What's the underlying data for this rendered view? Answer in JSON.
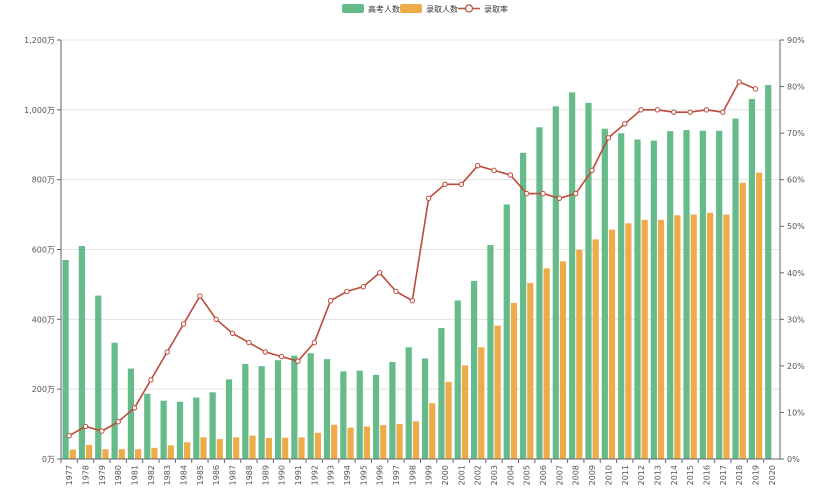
{
  "chart_data": {
    "type": "bar+line",
    "title": "",
    "xlabel": "",
    "ylabel": "",
    "grid": true,
    "legend_placement": "top-center",
    "legend": [
      "高考人数",
      "录取人数",
      "录取率"
    ],
    "colors": {
      "applicants": "#66bb8a",
      "admitted": "#eeab49",
      "rate": "#bd4a3a",
      "grid": "#e3e3e3",
      "axis": "#666666"
    },
    "categories": [
      "1977",
      "1978",
      "1979",
      "1980",
      "1981",
      "1982",
      "1983",
      "1984",
      "1985",
      "1986",
      "1987",
      "1988",
      "1989",
      "1990",
      "1991",
      "1992",
      "1993",
      "1994",
      "1995",
      "1996",
      "1997",
      "1998",
      "1999",
      "2000",
      "2001",
      "2002",
      "2003",
      "2004",
      "2005",
      "2006",
      "2007",
      "2008",
      "2009",
      "2010",
      "2011",
      "2012",
      "2013",
      "2014",
      "2015",
      "2016",
      "2017",
      "2018",
      "2019",
      "2020"
    ],
    "y_left": {
      "min": 0,
      "max": 1200,
      "ticks": [
        0,
        200,
        400,
        600,
        800,
        1000,
        1200
      ],
      "tick_labels": [
        "0万",
        "200万",
        "400万",
        "600万",
        "800万",
        "1,000万",
        "1,200万"
      ]
    },
    "y_right": {
      "min": 0,
      "max": 90,
      "ticks": [
        0,
        10,
        20,
        30,
        40,
        50,
        60,
        70,
        80,
        90
      ],
      "tick_labels": [
        "0%",
        "10%",
        "20%",
        "30%",
        "40%",
        "50%",
        "60%",
        "70%",
        "80%",
        "90%"
      ]
    },
    "series": [
      {
        "name": "高考人数",
        "type": "bar",
        "axis": "left",
        "values": [
          570,
          610,
          468,
          333,
          259,
          187,
          167,
          164,
          176,
          191,
          228,
          272,
          266,
          283,
          296,
          303,
          286,
          251,
          253,
          241,
          278,
          320,
          288,
          375,
          454,
          510,
          613,
          729,
          877,
          950,
          1010,
          1050,
          1020,
          946,
          933,
          915,
          912,
          939,
          942,
          940,
          940,
          975,
          1031,
          1071
        ]
      },
      {
        "name": "录取人数",
        "type": "bar",
        "axis": "left",
        "values": [
          27,
          40,
          28,
          28,
          28,
          32,
          39,
          48,
          62,
          57,
          62,
          67,
          60,
          61,
          62,
          75,
          98,
          90,
          93,
          97,
          100,
          108,
          160,
          221,
          268,
          320,
          382,
          447,
          504,
          546,
          566,
          599,
          629,
          657,
          675,
          685,
          685,
          698,
          700,
          705,
          700,
          791,
          820,
          null
        ]
      },
      {
        "name": "录取率",
        "type": "line",
        "axis": "right",
        "values": [
          5,
          7,
          6,
          8,
          11,
          17,
          23,
          29,
          35,
          30,
          27,
          25,
          23,
          22,
          21,
          25,
          34,
          36,
          37,
          40,
          36,
          34,
          56,
          59,
          59,
          63,
          62,
          61,
          57,
          57,
          56,
          57,
          62,
          69,
          72,
          75,
          75,
          74.5,
          74.5,
          75,
          74.5,
          81,
          79.5,
          null
        ]
      }
    ]
  }
}
